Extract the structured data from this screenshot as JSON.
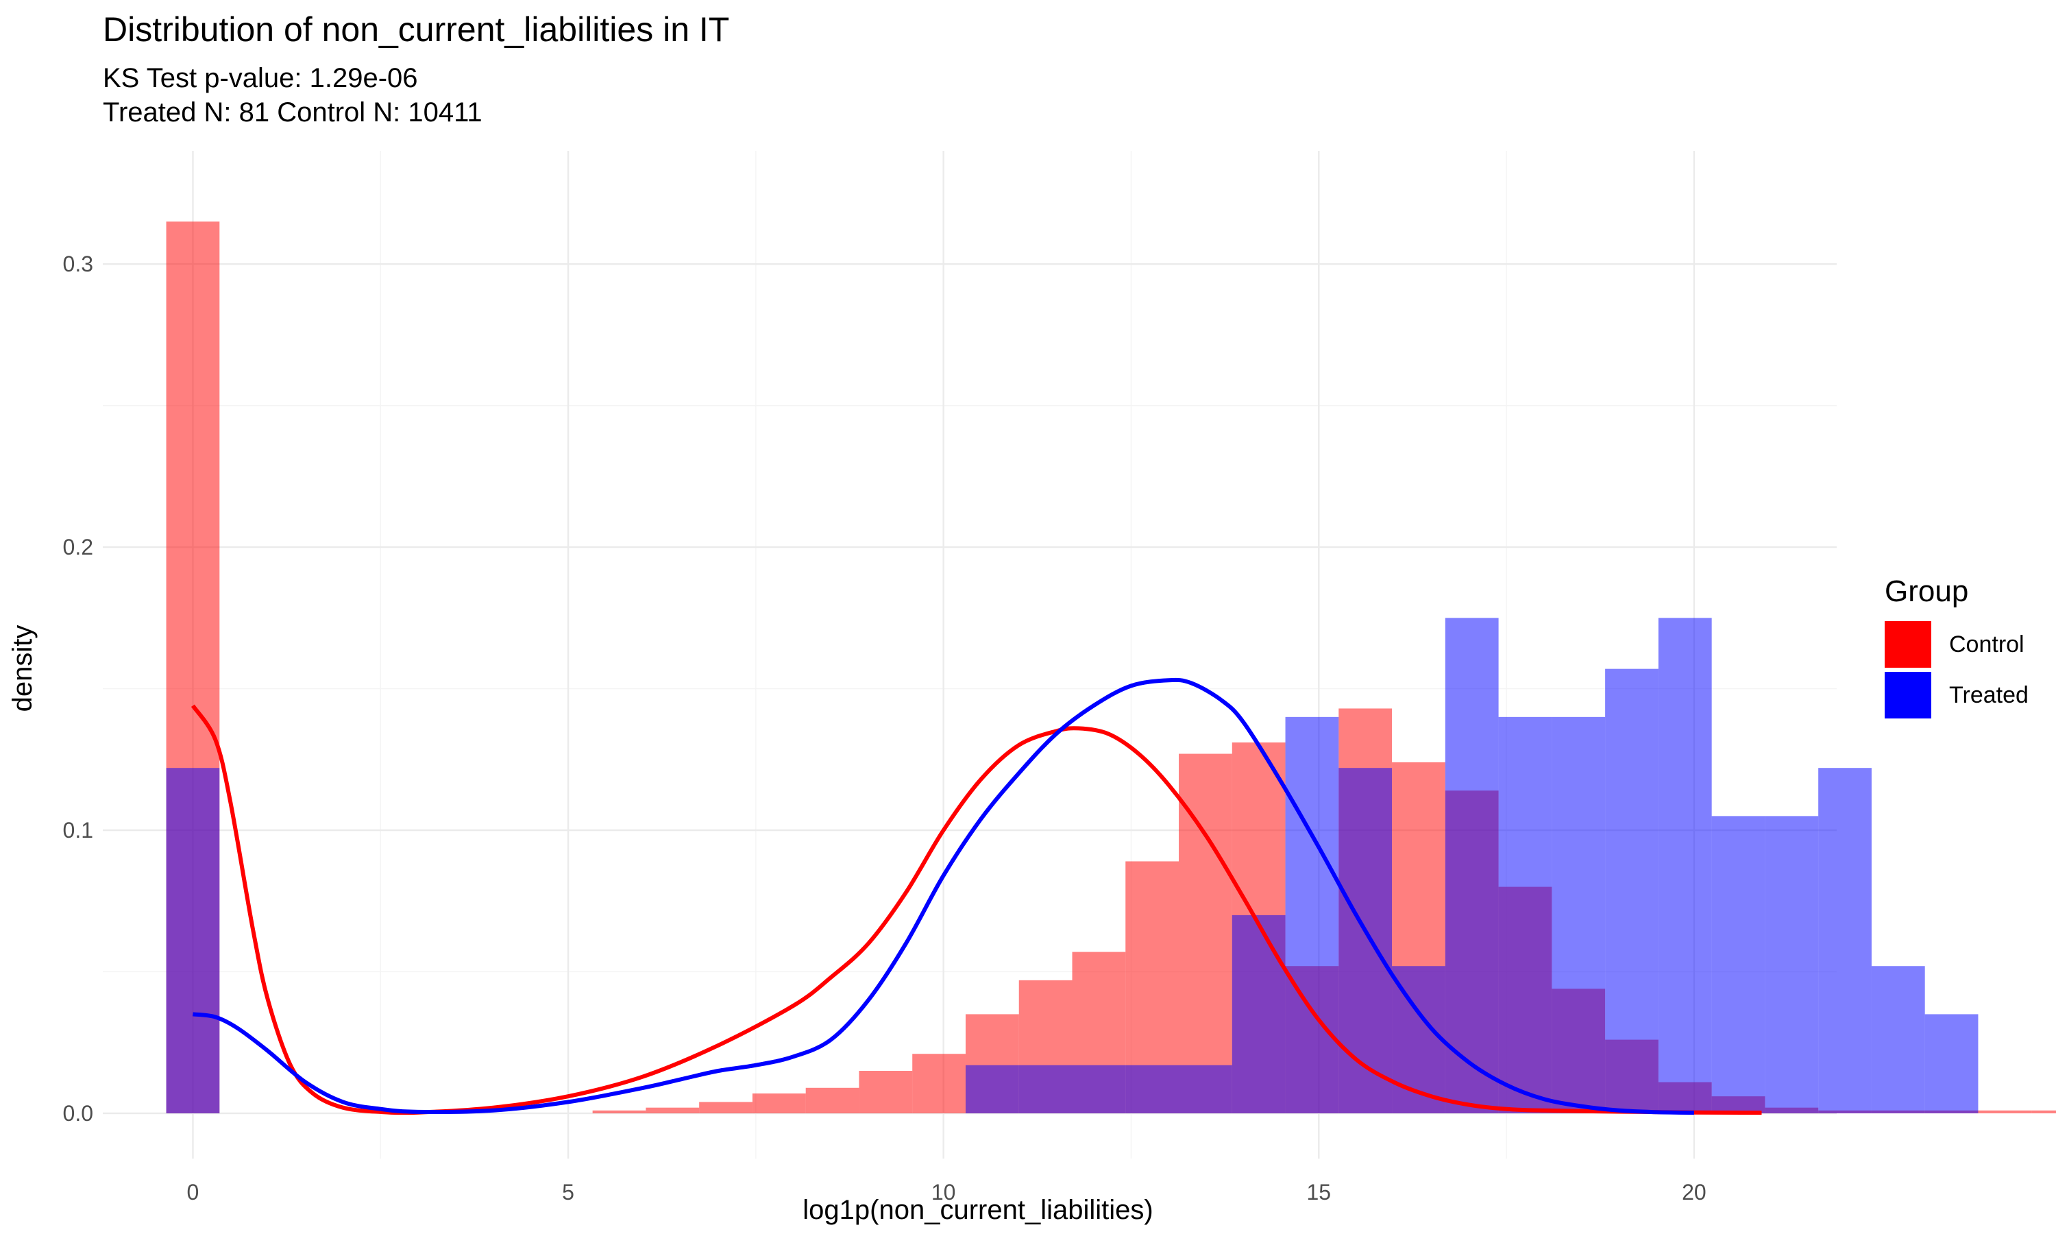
{
  "chart_data": {
    "type": "histogram",
    "title": "Distribution of non_current_liabilities in IT",
    "subtitle_lines": [
      "KS Test p-value: 1.29e-06",
      "Treated N: 81 Control N: 10411"
    ],
    "xlabel": "log1p(non_current_liabilities)",
    "ylabel": "density",
    "xlim": [
      -1.2,
      21.9
    ],
    "ylim": [
      -0.016,
      0.34
    ],
    "x_ticks": [
      0,
      5,
      10,
      15,
      20
    ],
    "x_tick_labels": [
      "0",
      "5",
      "10",
      "15",
      "20"
    ],
    "y_ticks": [
      0.0,
      0.1,
      0.2,
      0.3
    ],
    "y_tick_labels": [
      "0.0",
      "0.1",
      "0.2",
      "0.3"
    ],
    "grid": true,
    "legend": {
      "title": "Group",
      "position": "right"
    },
    "bin_width": 0.71,
    "bin_start": -0.355,
    "series": [
      {
        "name": "Control",
        "color": "#FF0000",
        "hist": [
          0.315,
          0,
          0,
          0,
          0,
          0,
          0,
          0,
          0.001,
          0.002,
          0.004,
          0.007,
          0.009,
          0.015,
          0.021,
          0.035,
          0.047,
          0.057,
          0.089,
          0.127,
          0.131,
          0.052,
          0.143,
          0.124,
          0.114,
          0.08,
          0.044,
          0.026,
          0.011,
          0.006,
          0.002,
          0.001,
          0.001,
          0.001,
          0.001,
          0.001,
          0.001,
          0.001,
          0.001
        ],
        "density_x": [
          0,
          0.3,
          0.5,
          0.8,
          1.0,
          1.3,
          1.6,
          2.0,
          2.5,
          3.0,
          4.0,
          5.0,
          6.0,
          7.0,
          8.0,
          8.5,
          9.0,
          9.5,
          10.0,
          10.5,
          11.0,
          11.5,
          11.8,
          12.2,
          12.6,
          13.0,
          13.5,
          14.0,
          14.5,
          15.0,
          15.5,
          16.0,
          16.5,
          17.0,
          17.5,
          18.0,
          19.0,
          20.0,
          20.9
        ],
        "density_y": [
          0.144,
          0.132,
          0.11,
          0.065,
          0.04,
          0.017,
          0.007,
          0.002,
          0.0005,
          0.0003,
          0.002,
          0.006,
          0.013,
          0.024,
          0.038,
          0.048,
          0.06,
          0.078,
          0.1,
          0.118,
          0.13,
          0.135,
          0.136,
          0.134,
          0.127,
          0.116,
          0.098,
          0.076,
          0.053,
          0.033,
          0.019,
          0.011,
          0.006,
          0.003,
          0.0015,
          0.001,
          0.0006,
          0.0003,
          0.0002
        ]
      },
      {
        "name": "Treated",
        "color": "#0000FF",
        "hist": [
          0.122,
          0,
          0,
          0,
          0,
          0,
          0,
          0,
          0,
          0,
          0,
          0,
          0,
          0,
          0,
          0.017,
          0.017,
          0.017,
          0.017,
          0.017,
          0.07,
          0.14,
          0.122,
          0.052,
          0.175,
          0.14,
          0.14,
          0.157,
          0.175,
          0.105,
          0.105,
          0.122,
          0.052,
          0.035,
          0,
          0,
          0,
          0,
          0
        ],
        "density_x": [
          0,
          0.3,
          0.6,
          1.0,
          1.5,
          2.0,
          2.5,
          3.0,
          4.0,
          5.0,
          6.0,
          6.5,
          7.0,
          7.5,
          8.0,
          8.5,
          9.0,
          9.5,
          10.0,
          10.5,
          11.0,
          11.5,
          12.0,
          12.5,
          13.0,
          13.3,
          13.7,
          14.0,
          14.5,
          15.0,
          15.5,
          16.0,
          16.5,
          17.0,
          17.5,
          18.0,
          18.5,
          19.0,
          19.5,
          20.0
        ],
        "density_y": [
          0.035,
          0.034,
          0.03,
          0.022,
          0.011,
          0.004,
          0.0015,
          0.0005,
          0.001,
          0.004,
          0.009,
          0.012,
          0.015,
          0.017,
          0.02,
          0.026,
          0.04,
          0.06,
          0.084,
          0.104,
          0.12,
          0.134,
          0.144,
          0.151,
          0.153,
          0.152,
          0.146,
          0.138,
          0.117,
          0.094,
          0.07,
          0.048,
          0.03,
          0.018,
          0.01,
          0.005,
          0.0025,
          0.001,
          0.0004,
          0.0002
        ]
      }
    ]
  }
}
